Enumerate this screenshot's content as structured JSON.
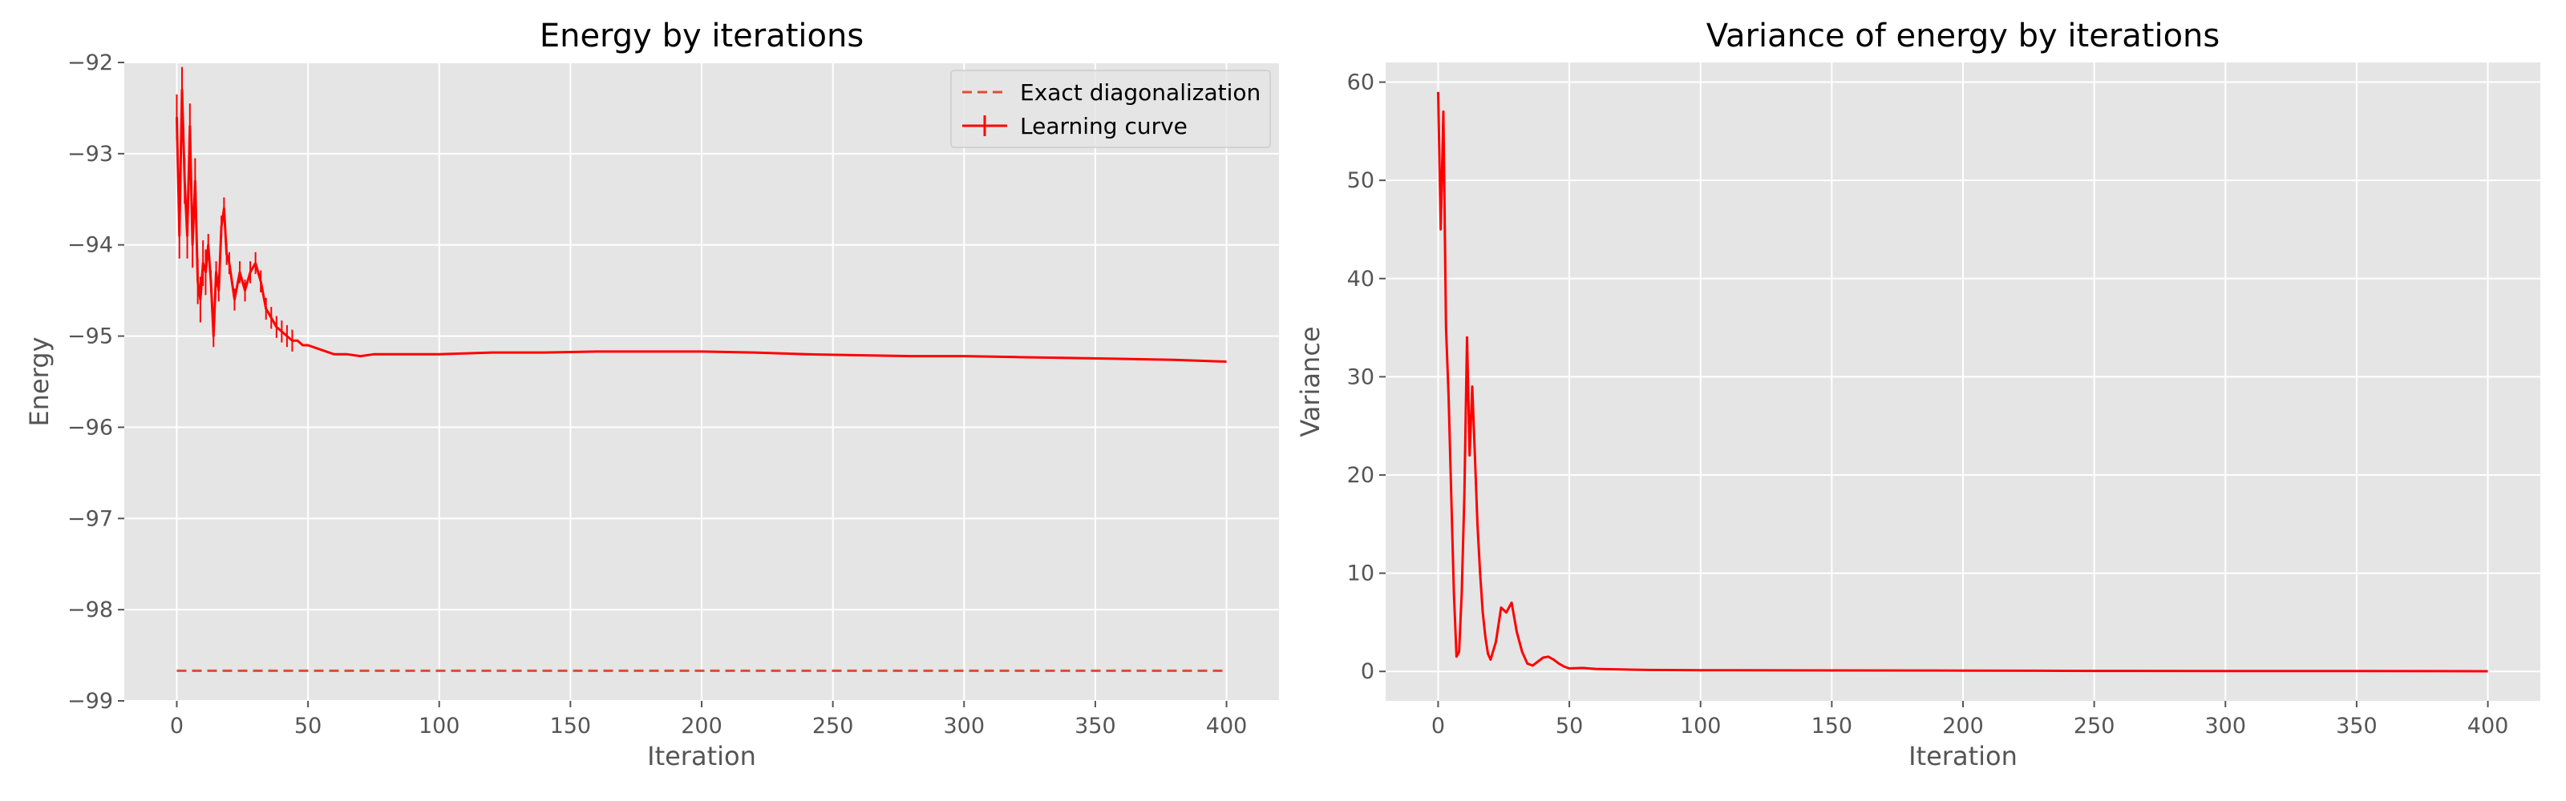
{
  "chart_data": [
    {
      "type": "line",
      "title": "Energy by iterations",
      "xlabel": "Iteration",
      "ylabel": "Energy",
      "xlim": [
        -20,
        420
      ],
      "ylim": [
        -99,
        -92
      ],
      "xticks": [
        0,
        50,
        100,
        150,
        200,
        250,
        300,
        350,
        400
      ],
      "yticks": [
        -99,
        -98,
        -97,
        -96,
        -95,
        -94,
        -93,
        -92
      ],
      "grid": true,
      "legend_position": "top-right",
      "series": [
        {
          "name": "Exact diagonalization",
          "style": "dashed",
          "color": "#E24A33",
          "x": [
            0,
            400
          ],
          "y": [
            -98.67,
            -98.67
          ]
        },
        {
          "name": "Learning curve",
          "style": "solid-with-errorbars",
          "color": "#FF0000",
          "x": [
            0,
            1,
            2,
            3,
            4,
            5,
            6,
            7,
            8,
            9,
            10,
            11,
            12,
            13,
            14,
            15,
            16,
            17,
            18,
            19,
            20,
            22,
            24,
            26,
            28,
            30,
            32,
            34,
            36,
            38,
            40,
            42,
            44,
            46,
            48,
            50,
            55,
            60,
            65,
            70,
            75,
            80,
            90,
            100,
            120,
            140,
            160,
            180,
            200,
            220,
            240,
            260,
            280,
            300,
            320,
            340,
            360,
            380,
            400
          ],
          "y": [
            -92.6,
            -93.9,
            -92.3,
            -93.3,
            -93.9,
            -92.7,
            -94.0,
            -93.3,
            -94.4,
            -94.6,
            -94.2,
            -94.3,
            -94.0,
            -94.4,
            -95.0,
            -94.3,
            -94.5,
            -93.8,
            -93.6,
            -94.1,
            -94.2,
            -94.6,
            -94.3,
            -94.5,
            -94.3,
            -94.2,
            -94.4,
            -94.7,
            -94.8,
            -94.9,
            -94.95,
            -95.0,
            -95.05,
            -95.05,
            -95.1,
            -95.1,
            -95.15,
            -95.2,
            -95.2,
            -95.22,
            -95.2,
            -95.2,
            -95.2,
            -95.2,
            -95.18,
            -95.18,
            -95.17,
            -95.17,
            -95.17,
            -95.18,
            -95.2,
            -95.21,
            -95.22,
            -95.22,
            -95.23,
            -95.24,
            -95.25,
            -95.26,
            -95.28
          ]
        }
      ]
    },
    {
      "type": "line",
      "title": "Variance of energy by iterations",
      "xlabel": "Iteration",
      "ylabel": "Variance",
      "xlim": [
        -20,
        420
      ],
      "ylim": [
        -3,
        62
      ],
      "xticks": [
        0,
        50,
        100,
        150,
        200,
        250,
        300,
        350,
        400
      ],
      "yticks": [
        0,
        10,
        20,
        30,
        40,
        50,
        60
      ],
      "grid": true,
      "series": [
        {
          "style": "solid",
          "color": "#FF0000",
          "x": [
            0,
            1,
            2,
            3,
            4,
            5,
            6,
            7,
            8,
            9,
            10,
            11,
            12,
            13,
            14,
            15,
            16,
            17,
            18,
            19,
            20,
            22,
            24,
            26,
            28,
            30,
            32,
            34,
            36,
            38,
            40,
            42,
            44,
            46,
            48,
            50,
            55,
            60,
            70,
            80,
            100,
            150,
            200,
            250,
            300,
            350,
            400
          ],
          "y": [
            59.0,
            45.0,
            57.0,
            35.0,
            28.0,
            18.0,
            8.0,
            1.5,
            2.0,
            8.0,
            18.0,
            34.0,
            22.0,
            29.0,
            22.0,
            15.0,
            10.0,
            6.0,
            3.5,
            1.8,
            1.2,
            3.0,
            6.5,
            6.0,
            7.0,
            4.0,
            2.0,
            0.8,
            0.6,
            1.0,
            1.4,
            1.5,
            1.2,
            0.8,
            0.5,
            0.3,
            0.35,
            0.25,
            0.2,
            0.15,
            0.12,
            0.1,
            0.08,
            0.05,
            0.04,
            0.03,
            0.02
          ]
        }
      ]
    }
  ]
}
